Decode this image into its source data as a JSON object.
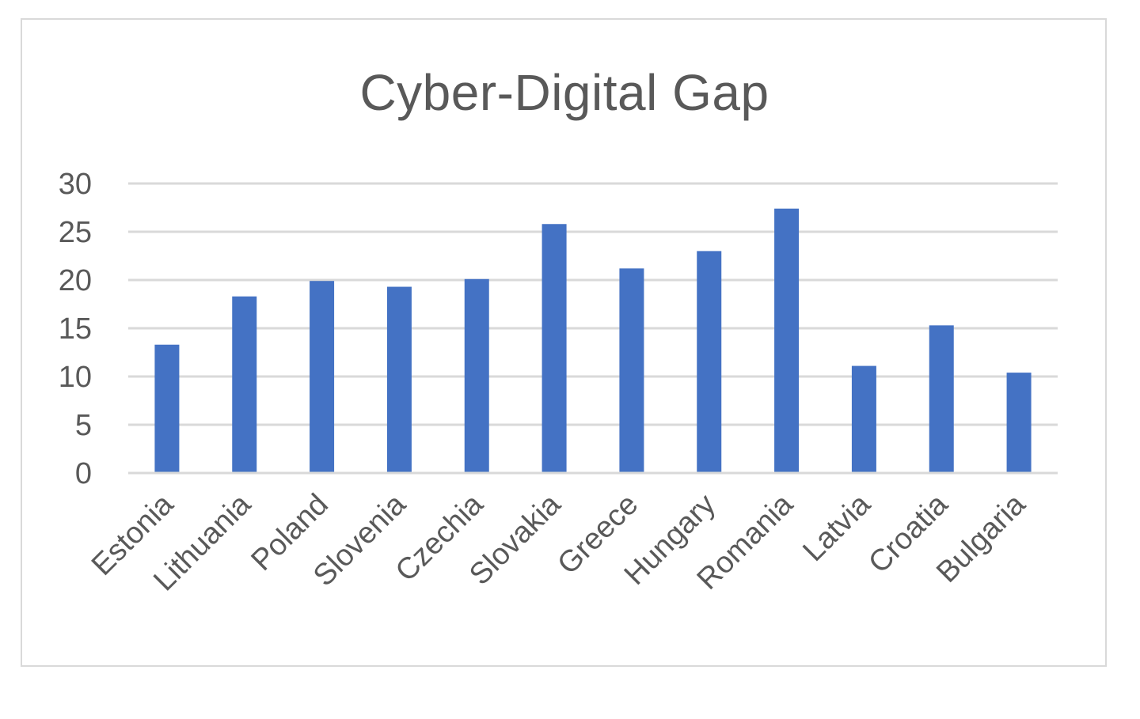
{
  "chart_data": {
    "type": "bar",
    "title": "Cyber-Digital Gap",
    "xlabel": "",
    "ylabel": "",
    "categories": [
      "Estonia",
      "Lithuania",
      "Poland",
      "Slovenia",
      "Czechia",
      "Slovakia",
      "Greece",
      "Hungary",
      "Romania",
      "Latvia",
      "Croatia",
      "Bulgaria"
    ],
    "values": [
      13.3,
      18.3,
      19.9,
      19.3,
      20.1,
      25.8,
      21.2,
      23.0,
      27.4,
      11.1,
      15.3,
      10.4
    ],
    "ylim": [
      0,
      30
    ],
    "yticks": [
      0,
      5,
      10,
      15,
      20,
      25,
      30
    ],
    "grid": true,
    "legend": "none",
    "colors": {
      "bar": "#4472c4",
      "grid": "#d9d9d9",
      "text": "#595959"
    }
  }
}
